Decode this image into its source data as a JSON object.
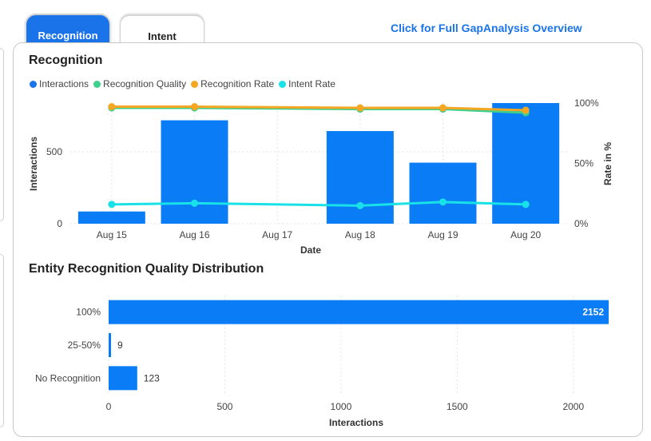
{
  "tabs": [
    {
      "label": "Recognition",
      "active": true
    },
    {
      "label": "Intent",
      "active": false
    }
  ],
  "overview_link": "Click for Full GapAnalysis Overview",
  "colors": {
    "accent": "#1a73e8",
    "bar": "#0a7cf5",
    "interactions": "#1a73e8",
    "recognition_quality": "#3ecf8e",
    "recognition_rate": "#f5a623",
    "intent_rate": "#18e1e8"
  },
  "chart_data": [
    {
      "type": "bar+line",
      "title": "Recognition",
      "legend": [
        "Interactions",
        "Recognition Quality",
        "Recognition Rate",
        "Intent Rate"
      ],
      "categories": [
        "Aug 15",
        "Aug 16",
        "Aug 17",
        "Aug 18",
        "Aug 19",
        "Aug 20"
      ],
      "xlabel": "Date",
      "ylabel": "Interactions",
      "y2label": "Rate in %",
      "ylim": [
        0,
        840
      ],
      "yticks": [
        0,
        500
      ],
      "y2lim": [
        0,
        100
      ],
      "y2ticks": [
        "0%",
        "50%",
        "100%"
      ],
      "y2tick_values": [
        0,
        50,
        100
      ],
      "series": [
        {
          "name": "Interactions",
          "kind": "bar",
          "axis": "left",
          "values": [
            85,
            720,
            0,
            645,
            425,
            840
          ]
        },
        {
          "name": "Recognition Quality",
          "kind": "line",
          "axis": "right",
          "values": [
            96,
            96,
            null,
            95,
            95,
            92
          ]
        },
        {
          "name": "Recognition Rate",
          "kind": "line",
          "axis": "right",
          "values": [
            97,
            97,
            null,
            96,
            96,
            94
          ]
        },
        {
          "name": "Intent Rate",
          "kind": "line",
          "axis": "right",
          "values": [
            16,
            17,
            null,
            15,
            18,
            16
          ]
        }
      ]
    },
    {
      "type": "bar",
      "orientation": "horizontal",
      "title": "Entity Recognition Quality Distribution",
      "categories": [
        "100%",
        "25-50%",
        "No Recognition"
      ],
      "values": [
        2152,
        9,
        123
      ],
      "data_labels": [
        "2152",
        "9",
        "123"
      ],
      "xlabel": "Interactions",
      "ylabel": "",
      "xlim": [
        0,
        2200
      ],
      "xticks": [
        0,
        500,
        1000,
        1500,
        2000
      ]
    }
  ]
}
